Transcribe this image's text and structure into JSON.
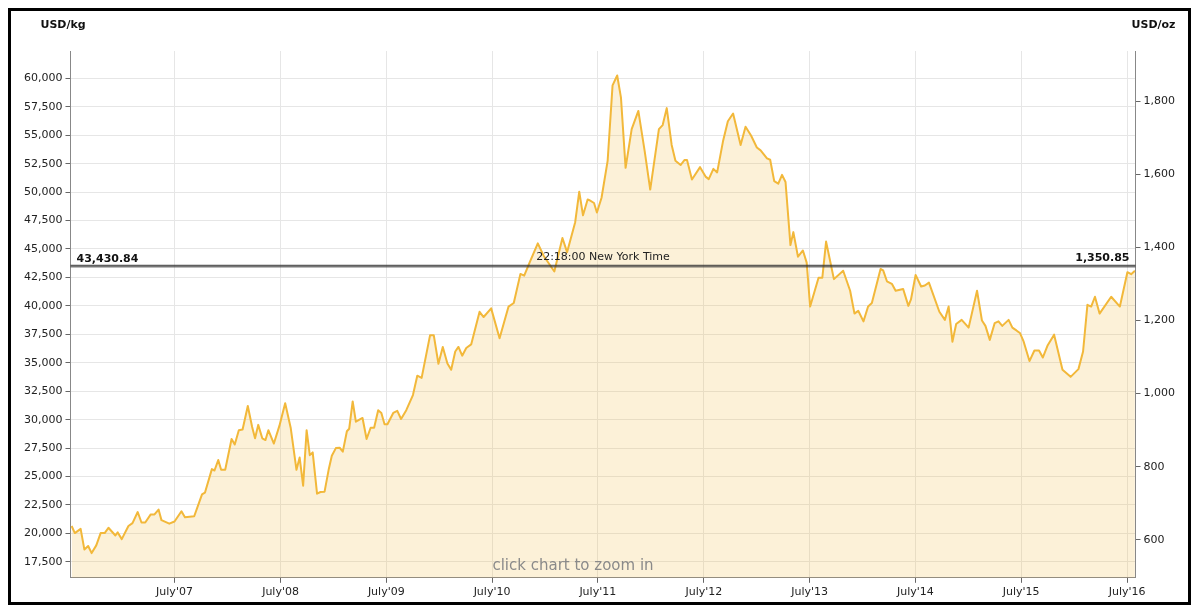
{
  "chart_data": {
    "type": "area",
    "ylabel": "USD/kg",
    "y2label": "USD/oz",
    "color": "#f2b83a",
    "grid": true,
    "marker": "none",
    "line_style": "solid",
    "xlim": [
      "2006-07-07",
      "2016-07-30"
    ],
    "xticks": [
      {
        "value": "2007-07-01",
        "label": "July'07"
      },
      {
        "value": "2008-07-01",
        "label": "July'08"
      },
      {
        "value": "2009-07-01",
        "label": "July'09"
      },
      {
        "value": "2010-07-01",
        "label": "July'10"
      },
      {
        "value": "2011-07-01",
        "label": "July'11"
      },
      {
        "value": "2012-07-01",
        "label": "July'12"
      },
      {
        "value": "2013-07-01",
        "label": "July'13"
      },
      {
        "value": "2014-07-01",
        "label": "July'14"
      },
      {
        "value": "2015-07-01",
        "label": "July'15"
      },
      {
        "value": "2016-07-01",
        "label": "July'16"
      }
    ],
    "ylim": [
      16100,
      62400
    ],
    "yticks": [
      {
        "value": 17500,
        "label": "17,500"
      },
      {
        "value": 20000,
        "label": "20,000"
      },
      {
        "value": 22500,
        "label": "22,500"
      },
      {
        "value": 25000,
        "label": "25,000"
      },
      {
        "value": 27500,
        "label": "27,500"
      },
      {
        "value": 30000,
        "label": "30,000"
      },
      {
        "value": 32500,
        "label": "32,500"
      },
      {
        "value": 35000,
        "label": "35,000"
      },
      {
        "value": 37500,
        "label": "37,500"
      },
      {
        "value": 40000,
        "label": "40,000"
      },
      {
        "value": 42500,
        "label": "42,500"
      },
      {
        "value": 45000,
        "label": "45,000"
      },
      {
        "value": 47500,
        "label": "47,500"
      },
      {
        "value": 50000,
        "label": "50,000"
      },
      {
        "value": 52500,
        "label": "52,500"
      },
      {
        "value": 55000,
        "label": "55,000"
      },
      {
        "value": 57500,
        "label": "57,500"
      },
      {
        "value": 60000,
        "label": "60,000"
      }
    ],
    "y2lim": [
      496,
      1937
    ],
    "y2ticks": [
      600,
      800,
      {
        "value": 1000,
        "label": "1,000"
      },
      {
        "value": 1200,
        "label": "1,200"
      },
      {
        "value": 1400,
        "label": "1,400"
      },
      {
        "value": 1600,
        "label": "1,600"
      },
      {
        "value": 1800,
        "label": "1,800"
      }
    ],
    "ref_lines": [
      {
        "axis": "y",
        "value": 43430.84,
        "label": "43,430.84",
        "color": "#333333"
      },
      {
        "axis": "y2",
        "value": 1350.85,
        "label": "1,350.85",
        "color": "#333333"
      }
    ],
    "annotations": [
      {
        "text": "22:18:00 New York Time",
        "y": 43430.84
      },
      "click chart to zoom in"
    ],
    "x": [
      "2006-07-11",
      "2006-07-22",
      "2006-08-11",
      "2006-08-24",
      "2006-09-06",
      "2006-09-18",
      "2006-10-04",
      "2006-10-19",
      "2006-11-02",
      "2006-11-15",
      "2006-12-09",
      "2006-12-17",
      "2006-12-31",
      "2007-01-23",
      "2007-02-06",
      "2007-02-24",
      "2007-03-09",
      "2007-03-22",
      "2007-04-10",
      "2007-04-23",
      "2007-05-07",
      "2007-05-17",
      "2007-06-13",
      "2007-07-01",
      "2007-07-25",
      "2007-08-06",
      "2007-09-07",
      "2007-10-04",
      "2007-10-14",
      "2007-11-07",
      "2007-11-16",
      "2007-11-29",
      "2007-12-09",
      "2007-12-23",
      "2008-01-14",
      "2008-01-25",
      "2008-02-08",
      "2008-02-21",
      "2008-03-10",
      "2008-03-25",
      "2008-04-04",
      "2008-04-15",
      "2008-04-29",
      "2008-05-10",
      "2008-05-20",
      "2008-06-08",
      "2008-06-27",
      "2008-07-17",
      "2008-08-05",
      "2008-08-25",
      "2008-09-05",
      "2008-09-17",
      "2008-09-29",
      "2008-10-10",
      "2008-10-20",
      "2008-11-04",
      "2008-11-16",
      "2008-11-30",
      "2008-12-14",
      "2008-12-25",
      "2009-01-08",
      "2009-01-21",
      "2009-02-01",
      "2009-02-15",
      "2009-02-23",
      "2009-03-07",
      "2009-03-18",
      "2009-04-10",
      "2009-04-24",
      "2009-05-08",
      "2009-05-20",
      "2009-06-03",
      "2009-06-14",
      "2009-06-25",
      "2009-07-05",
      "2009-07-25",
      "2009-08-08",
      "2009-08-21",
      "2009-09-08",
      "2009-10-01",
      "2009-10-16",
      "2009-10-31",
      "2009-11-29",
      "2009-12-12",
      "2009-12-28",
      "2010-01-12",
      "2010-01-28",
      "2010-02-10",
      "2010-02-24",
      "2010-03-07",
      "2010-03-20",
      "2010-04-03",
      "2010-04-20",
      "2010-05-19",
      "2010-06-02",
      "2010-06-28",
      "2010-07-27",
      "2010-08-27",
      "2010-09-14",
      "2010-10-07",
      "2010-10-20",
      "2010-11-09",
      "2010-12-06",
      "2010-12-26",
      "2011-02-01",
      "2011-03-01",
      "2011-03-17",
      "2011-04-14",
      "2011-04-28",
      "2011-05-11",
      "2011-05-27",
      "2011-06-02",
      "2011-06-18",
      "2011-06-28",
      "2011-07-14",
      "2011-08-04",
      "2011-08-21",
      "2011-09-06",
      "2011-09-19",
      "2011-10-05",
      "2011-10-26",
      "2011-11-18",
      "2011-12-10",
      "2011-12-29",
      "2012-01-28",
      "2012-02-10",
      "2012-02-24",
      "2012-03-12",
      "2012-03-25",
      "2012-04-12",
      "2012-04-25",
      "2012-05-04",
      "2012-05-21",
      "2012-06-18",
      "2012-07-07",
      "2012-07-18",
      "2012-08-03",
      "2012-08-16",
      "2012-09-05",
      "2012-09-22",
      "2012-10-10",
      "2012-11-05",
      "2012-11-22",
      "2012-12-11",
      "2012-12-31",
      "2013-01-13",
      "2013-02-04",
      "2013-02-15",
      "2013-03-01",
      "2013-03-15",
      "2013-03-28",
      "2013-04-09",
      "2013-04-26",
      "2013-05-06",
      "2013-05-22",
      "2013-06-08",
      "2013-06-21",
      "2013-07-03",
      "2013-08-01",
      "2013-08-14",
      "2013-08-27",
      "2013-09-23",
      "2013-10-25",
      "2013-11-18",
      "2013-12-03",
      "2013-12-16",
      "2014-01-03",
      "2014-01-19",
      "2014-02-01",
      "2014-03-03",
      "2014-03-12",
      "2014-03-25",
      "2014-04-11",
      "2014-04-24",
      "2014-05-20",
      "2014-06-07",
      "2014-06-16",
      "2014-07-02",
      "2014-07-21",
      "2014-08-03",
      "2014-08-17",
      "2014-09-22",
      "2014-10-11",
      "2014-10-24",
      "2014-11-06",
      "2014-11-19",
      "2014-12-08",
      "2015-01-01",
      "2015-01-30",
      "2015-02-16",
      "2015-02-28",
      "2015-03-15",
      "2015-04-01",
      "2015-04-14",
      "2015-04-27",
      "2015-05-19",
      "2015-06-01",
      "2015-06-27",
      "2015-07-10",
      "2015-07-30",
      "2015-08-16",
      "2015-09-01",
      "2015-09-14",
      "2015-10-01",
      "2015-10-23",
      "2015-11-21",
      "2015-12-19",
      "2016-01-15",
      "2016-01-31",
      "2016-02-15",
      "2016-02-28",
      "2016-03-12",
      "2016-03-28",
      "2016-05-07",
      "2016-06-06",
      "2016-07-02",
      "2016-07-15",
      "2016-07-28"
    ],
    "values": [
      20650,
      20030,
      20400,
      18580,
      18890,
      18270,
      18950,
      20030,
      20030,
      20500,
      19820,
      20090,
      19500,
      20650,
      20900,
      21880,
      20960,
      20960,
      21670,
      21670,
      22100,
      21170,
      20860,
      21050,
      21950,
      21420,
      21510,
      23430,
      23580,
      25650,
      25530,
      26450,
      25590,
      25590,
      28300,
      27810,
      29070,
      29130,
      31200,
      29350,
      28360,
      29540,
      28360,
      28210,
      29070,
      27900,
      29450,
      31450,
      29290,
      25590,
      26670,
      24200,
      29070,
      26880,
      27120,
      23490,
      23640,
      23670,
      25590,
      26820,
      27500,
      27530,
      27190,
      28980,
      29200,
      31600,
      29820,
      30150,
      28300,
      29290,
      29290,
      30830,
      30590,
      29600,
      29600,
      30590,
      30770,
      30060,
      30830,
      32160,
      33860,
      33670,
      37410,
      37410,
      34910,
      36390,
      34940,
      34380,
      35990,
      36390,
      35620,
      36300,
      36610,
      39480,
      39020,
      39780,
      37160,
      39940,
      40250,
      42810,
      42660,
      43890,
      45490,
      44410,
      43020,
      45960,
      44720,
      47350,
      50030,
      47960,
      49350,
      49290,
      49040,
      48210,
      49500,
      52750,
      59380,
      60250,
      58300,
      52130,
      55530,
      57130,
      53580,
      50220,
      55530,
      55890,
      57380,
      54140,
      52750,
      52380,
      52810,
      52810,
      51110,
      52190,
      51360,
      51140,
      52040,
      51730,
      54440,
      56230,
      56910,
      54140,
      55740,
      54970,
      53920,
      53670,
      52960,
      52840,
      50960,
      50740,
      51510,
      50890,
      45340,
      46480,
      44320,
      44870,
      43800,
      39940,
      42470,
      42470,
      45650,
      42350,
      43090,
      41330,
      39320,
      39570,
      38640,
      39940,
      40250,
      43240,
      43120,
      42160,
      41940,
      41330,
      41480,
      40000,
      40560,
      42720,
      41700,
      41790,
      42040,
      39480,
      38770,
      39940,
      36850,
      38400,
      38770,
      38090,
      41330,
      38710,
      38240,
      37010,
      38490,
      38640,
      38240,
      38770,
      38090,
      37620,
      36850,
      35150,
      36080,
      36080,
      35460,
      36540,
      37470,
      34380,
      33760,
      34440,
      35990,
      40090,
      39940,
      40800,
      39320,
      40800,
      39940,
      42960,
      42780,
      43090
    ]
  }
}
